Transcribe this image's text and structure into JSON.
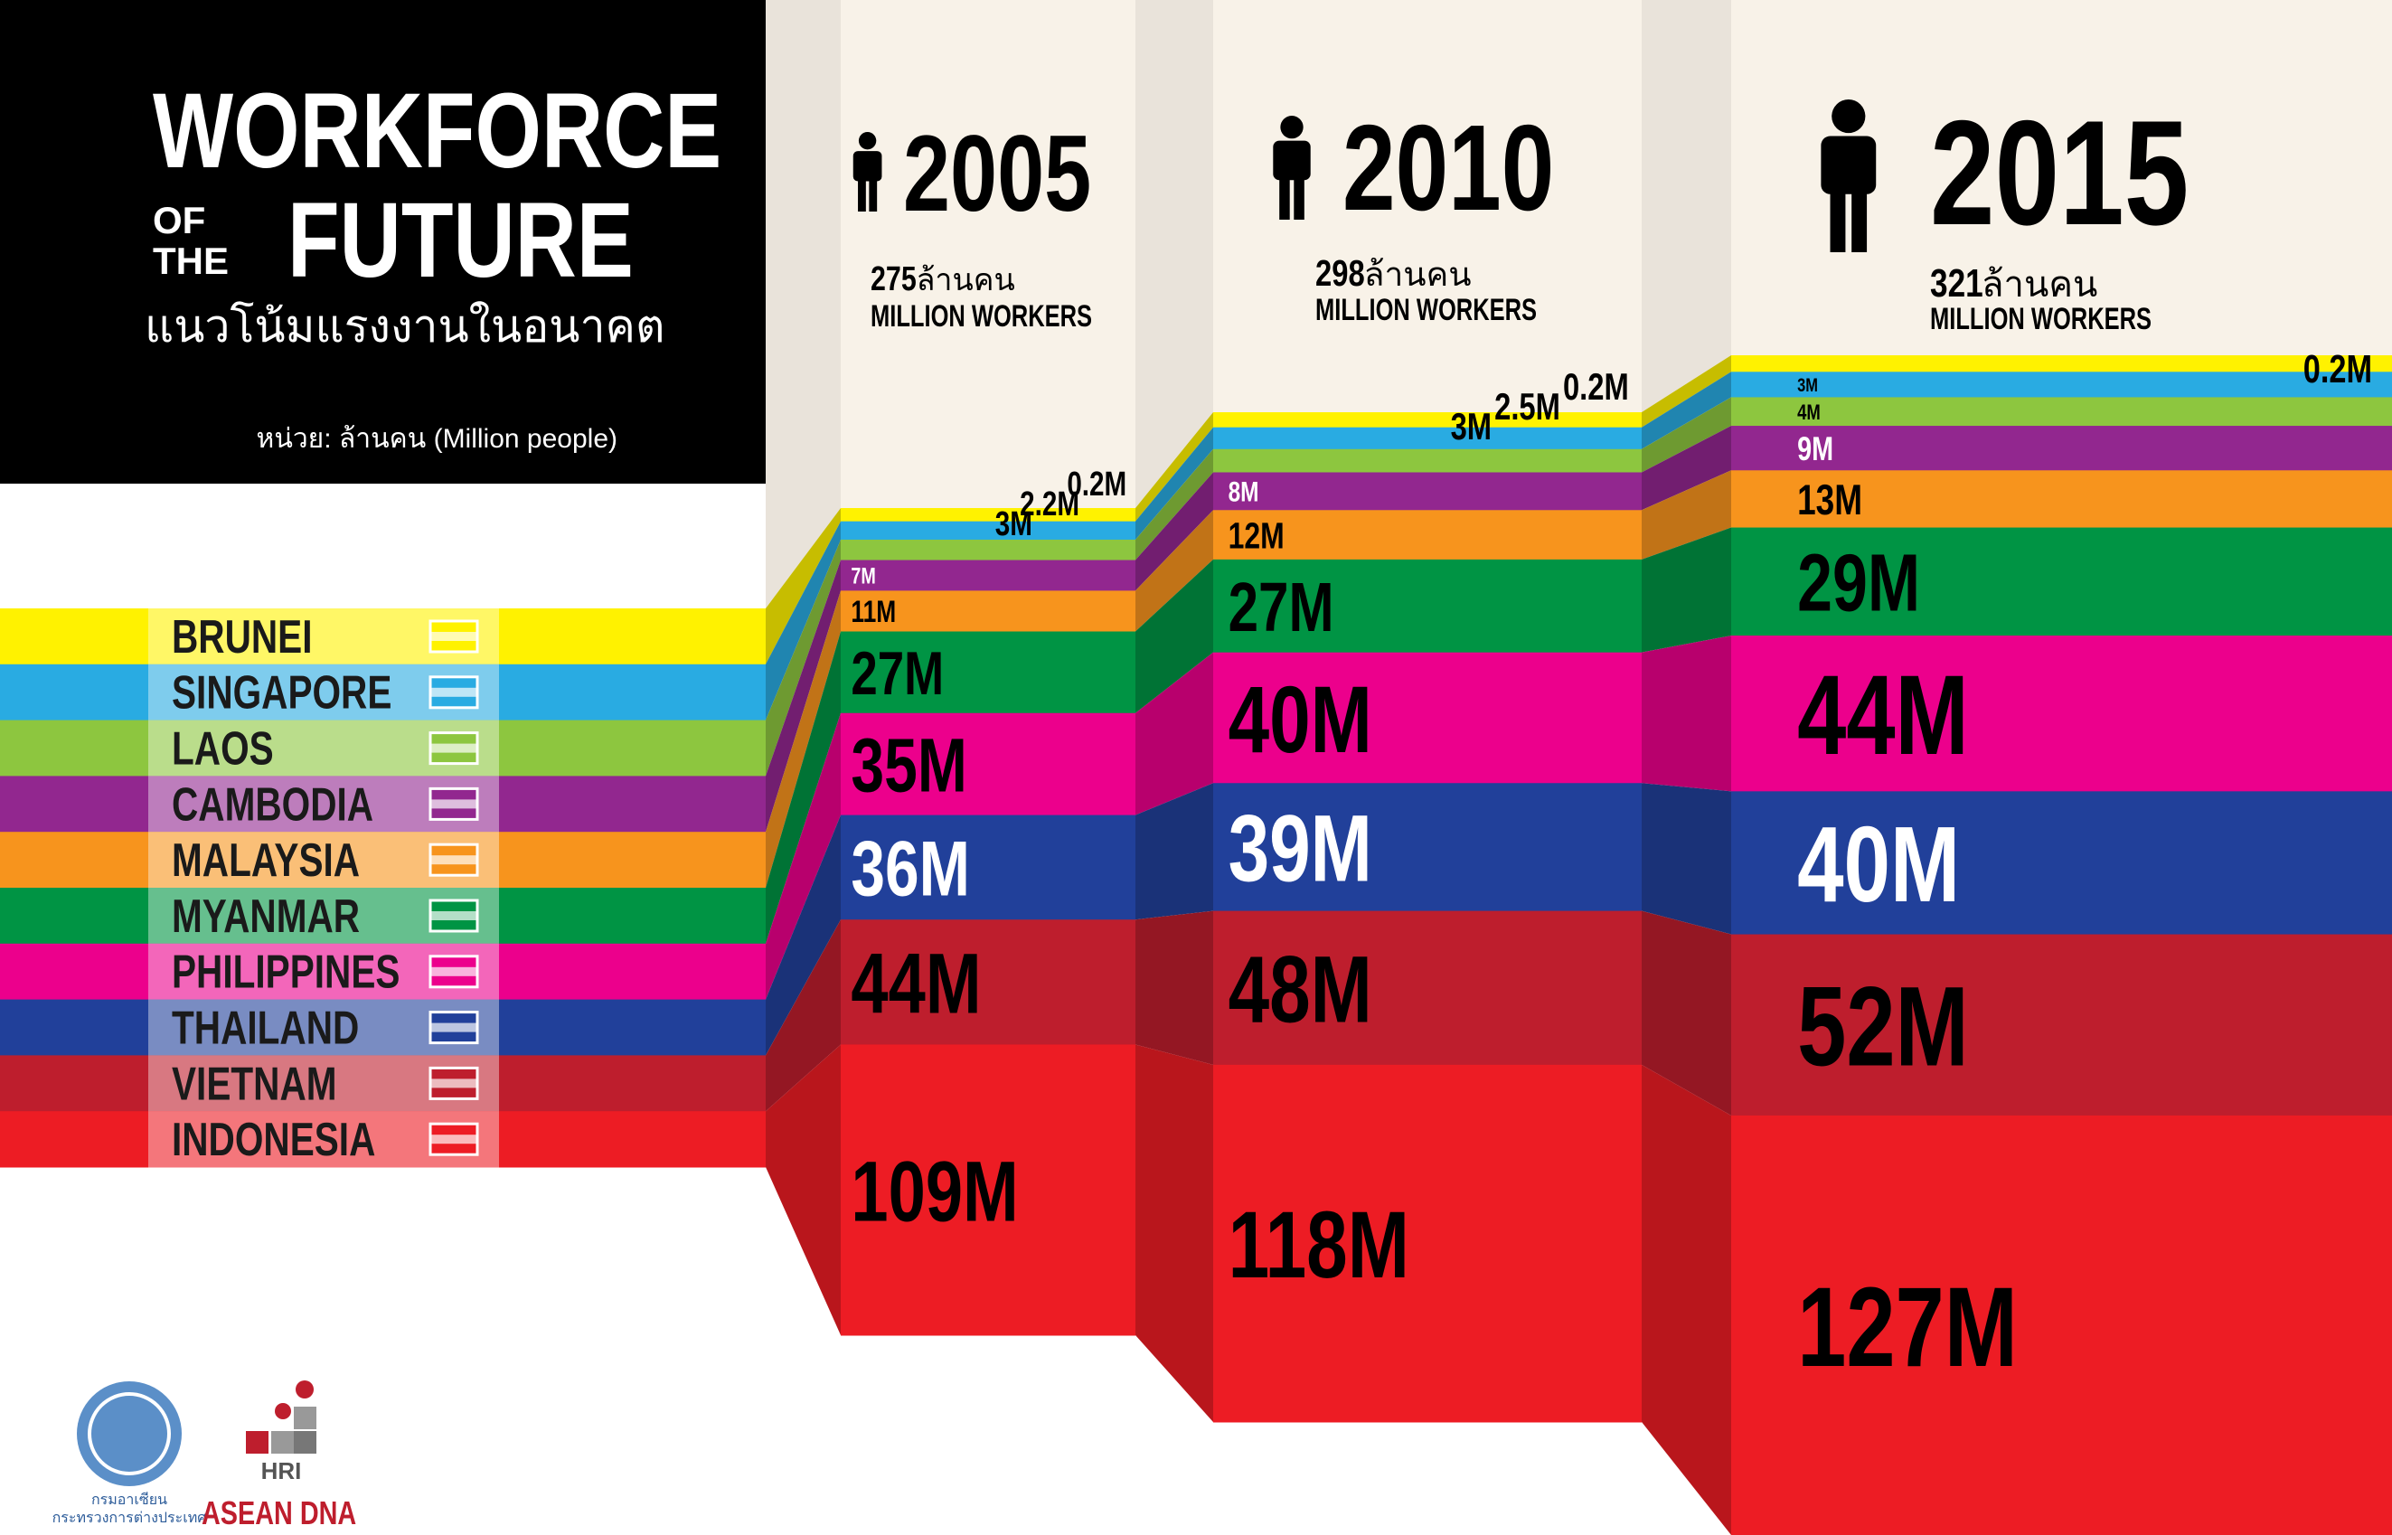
{
  "chart_data": {
    "type": "stacked-bar",
    "title": [
      "WORKFORCE",
      "OF",
      "THE",
      "FUTURE"
    ],
    "subtitle": "แนวโน้มแรงงานในอนาคต",
    "unit_note": "หน่วย: ล้านคน (Million people)",
    "categories": [
      "2005",
      "2010",
      "2015"
    ],
    "totals": [
      275,
      298,
      321
    ],
    "total_unit": "ล้านคน",
    "total_label": "MILLION WORKERS",
    "series": [
      {
        "name": "BRUNEI",
        "color": "#fff200",
        "label_color": "#000000",
        "values": [
          0.2,
          0.2,
          0.2
        ],
        "value_labels": [
          "0.2M",
          "0.2M",
          "0.2M"
        ]
      },
      {
        "name": "SINGAPORE",
        "color": "#29abe2",
        "label_color": "#000000",
        "values": [
          2.2,
          2.5,
          3
        ],
        "value_labels": [
          "2.2M",
          "2.5M",
          "3M"
        ]
      },
      {
        "name": "LAOS",
        "color": "#8dc63f",
        "label_color": "#000000",
        "values": [
          3,
          3,
          4
        ],
        "value_labels": [
          "3M",
          "3M",
          "4M"
        ]
      },
      {
        "name": "CAMBODIA",
        "color": "#92278f",
        "label_color": "#ffffff",
        "values": [
          7,
          8,
          9
        ],
        "value_labels": [
          "7M",
          "8M",
          "9M"
        ]
      },
      {
        "name": "MALAYSIA",
        "color": "#f7941d",
        "label_color": "#000000",
        "values": [
          11,
          12,
          13
        ],
        "value_labels": [
          "11M",
          "12M",
          "13M"
        ]
      },
      {
        "name": "MYANMAR",
        "color": "#009444",
        "label_color": "#000000",
        "values": [
          27,
          27,
          29
        ],
        "value_labels": [
          "27M",
          "27M",
          "29M"
        ]
      },
      {
        "name": "PHILIPPINES",
        "color": "#ec008c",
        "label_color": "#000000",
        "values": [
          35,
          40,
          44
        ],
        "value_labels": [
          "35M",
          "40M",
          "44M"
        ]
      },
      {
        "name": "THAILAND",
        "color": "#21409a",
        "label_color": "#ffffff",
        "values": [
          36,
          39,
          40
        ],
        "value_labels": [
          "36M",
          "39M",
          "40M"
        ]
      },
      {
        "name": "VIETNAM",
        "color": "#be1e2d",
        "label_color": "#000000",
        "values": [
          44,
          48,
          52
        ],
        "value_labels": [
          "44M",
          "48M",
          "52M"
        ]
      },
      {
        "name": "INDONESIA",
        "color": "#ed1c24",
        "label_color": "#000000",
        "values": [
          109,
          118,
          127
        ],
        "value_labels": [
          "109M",
          "118M",
          "127M"
        ]
      }
    ]
  },
  "logos": {
    "ministry": [
      "กรมอาเซียน",
      "กระทรวงการต่างประเทศ"
    ],
    "hri": "HRI",
    "asean_dna": "ASEAN DNA"
  }
}
